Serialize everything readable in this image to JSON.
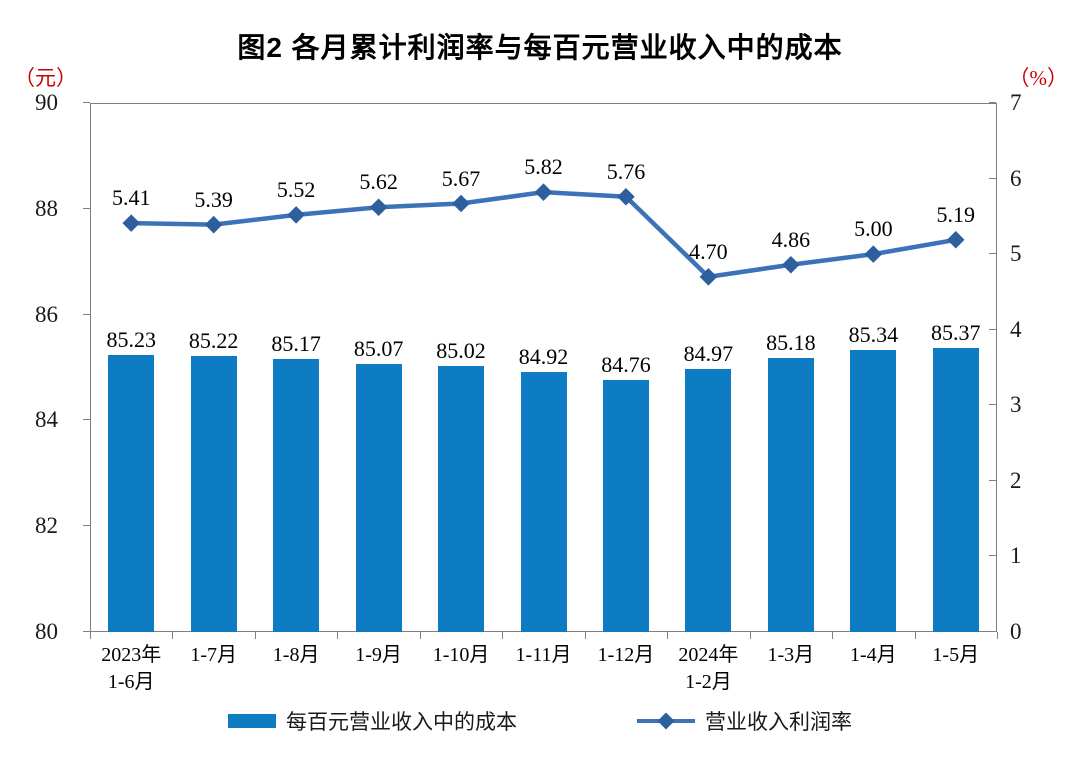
{
  "title": "图2  各月累计利润率与每百元营业收入中的成本",
  "left_axis": {
    "unit": "（元）",
    "min": 80,
    "max": 90,
    "ticks": [
      90,
      88,
      86,
      84,
      82,
      80
    ]
  },
  "right_axis": {
    "unit": "（%）",
    "min": 0,
    "max": 7,
    "ticks": [
      7,
      6,
      5,
      4,
      3,
      2,
      1,
      0
    ]
  },
  "colors": {
    "bar": "#0d7cc3",
    "line": "#3b72b8",
    "marker": "#2d5f9e",
    "unit_label": "#cc0000",
    "axis": "#7f7f7f",
    "text": "#000000"
  },
  "legend": [
    {
      "label": "每百元营业收入中的成本",
      "type": "bar"
    },
    {
      "label": "营业收入利润率",
      "type": "line"
    }
  ],
  "chart_data": {
    "type": "bar+line",
    "categories": [
      [
        "2023年",
        "1-6月"
      ],
      [
        "1-7月"
      ],
      [
        "1-8月"
      ],
      [
        "1-9月"
      ],
      [
        "1-10月"
      ],
      [
        "1-11月"
      ],
      [
        "1-12月"
      ],
      [
        "2024年",
        "1-2月"
      ],
      [
        "1-3月"
      ],
      [
        "1-4月"
      ],
      [
        "1-5月"
      ]
    ],
    "series": [
      {
        "name": "每百元营业收入中的成本",
        "type": "bar",
        "axis": "left",
        "values": [
          85.23,
          85.22,
          85.17,
          85.07,
          85.02,
          84.92,
          84.76,
          84.97,
          85.18,
          85.34,
          85.37
        ]
      },
      {
        "name": "营业收入利润率",
        "type": "line",
        "axis": "right",
        "values": [
          5.41,
          5.39,
          5.52,
          5.62,
          5.67,
          5.82,
          5.76,
          4.7,
          4.86,
          5.0,
          5.19
        ]
      }
    ],
    "left_ylim": [
      80,
      90
    ],
    "right_ylim": [
      0,
      7
    ],
    "grid": false,
    "value_labels": true,
    "legend_position": "bottom"
  }
}
